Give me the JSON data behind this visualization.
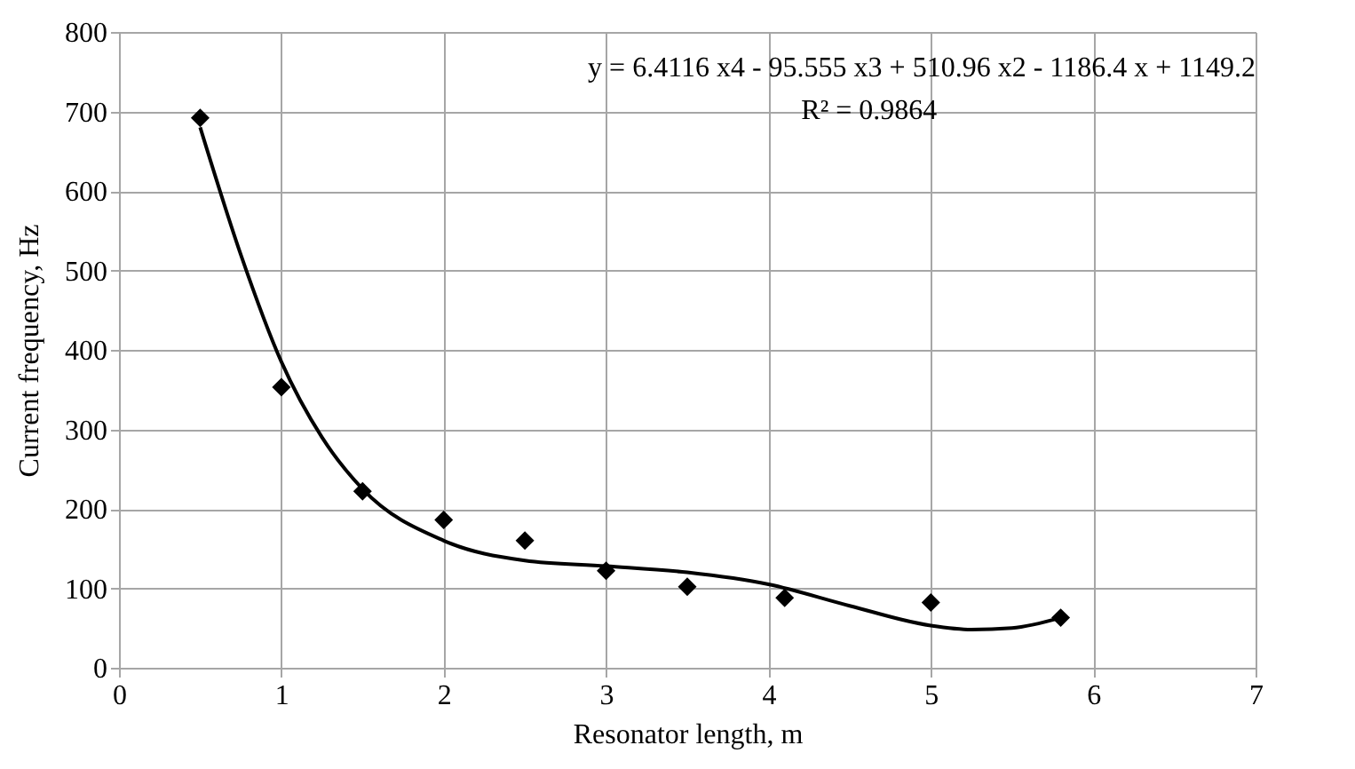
{
  "chart_data": {
    "type": "scatter",
    "xlabel": "Resonator length, m",
    "ylabel": "Current frequency, Hz",
    "annotations": [
      "y = 6.4116 x4 - 95.555 x3 + 510.96 x2 - 1186.4 x + 1149.2",
      "R² = 0.9864"
    ],
    "x": [
      0.5,
      1,
      1.5,
      2,
      2.5,
      3,
      3.5,
      4.1,
      5,
      5.8
    ],
    "series": [
      {
        "color": "#000000",
        "marker": "diamond",
        "values": [
          692,
          353,
          222,
          186,
          160,
          122,
          102,
          88,
          82,
          63
        ]
      },
      {
        "type": "line",
        "color": "#000000",
        "x": [
          0.5,
          0.75,
          1,
          1.25,
          1.5,
          2,
          2.5,
          3,
          3.5,
          4,
          4.5,
          5,
          5.25,
          5.5,
          5.8
        ],
        "values": [
          680,
          520,
          385,
          290,
          225,
          160,
          135,
          128,
          120,
          105,
          78,
          53,
          48,
          50,
          63
        ]
      }
    ],
    "xlim": [
      0,
      7
    ],
    "xticks": [
      0,
      1,
      2,
      3,
      4,
      5,
      6,
      7
    ],
    "ylim": [
      0,
      800
    ],
    "yticks": [
      0,
      100,
      200,
      300,
      400,
      500,
      600,
      700,
      800
    ],
    "grid": true
  }
}
